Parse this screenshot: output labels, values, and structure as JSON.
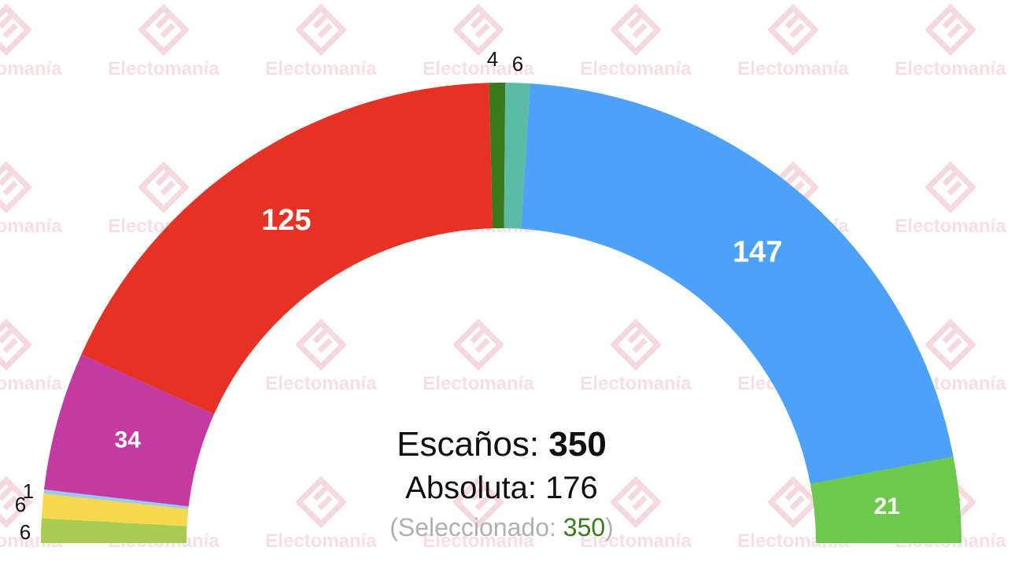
{
  "watermark": {
    "text": "Electomanía",
    "icon": "electomania-logo-icon",
    "color": "#f3c9cf"
  },
  "summary": {
    "seats_label": "Escaños: ",
    "seats_total": "350",
    "absolute_label": "Absoluta: ",
    "absolute_value": "176",
    "selected_open": "(Seleccionado: ",
    "selected_value": "350",
    "selected_close": ")"
  },
  "chart_data": {
    "type": "pie",
    "subtype": "parliament-hemicycle",
    "total": 350,
    "majority": 176,
    "slices": [
      {
        "value": 6,
        "color": "#a8cc52",
        "label_position": "outside"
      },
      {
        "value": 6,
        "color": "#f5d84b",
        "label_position": "outside"
      },
      {
        "value": 1,
        "color": "#9dc8ee",
        "label_position": "outside"
      },
      {
        "value": 34,
        "color": "#c43aa3",
        "label_position": "inside"
      },
      {
        "value": 125,
        "color": "#e63225",
        "label_position": "inside"
      },
      {
        "value": 4,
        "color": "#3a7a1f",
        "label_position": "outside"
      },
      {
        "value": 6,
        "color": "#5cbba5",
        "label_position": "outside"
      },
      {
        "value": 147,
        "color": "#4da1f8",
        "label_position": "inside"
      },
      {
        "value": 21,
        "color": "#6cc94b",
        "label_position": "inside"
      }
    ]
  }
}
